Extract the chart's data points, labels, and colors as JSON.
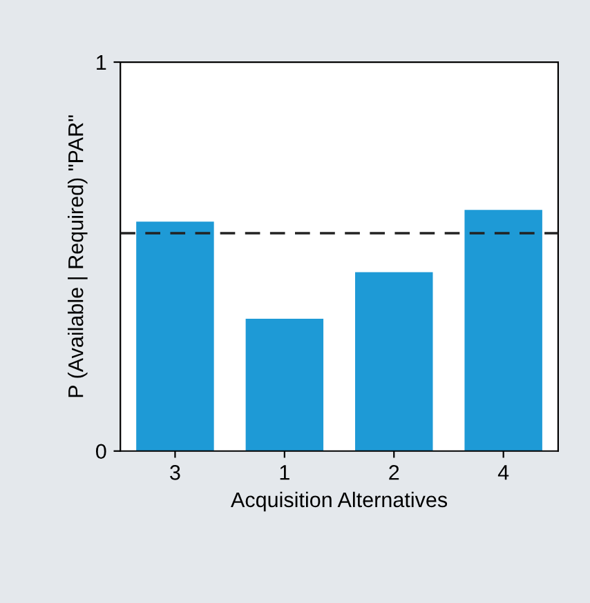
{
  "chart_data": {
    "type": "bar",
    "xlabel": "Acquisition Alternatives",
    "ylabel": "P (Available | Required) \"PAR\"",
    "categories": [
      "3",
      "1",
      "2",
      "4"
    ],
    "values": [
      0.59,
      0.34,
      0.46,
      0.62
    ],
    "color": "#1e9ad6",
    "ylim": [
      0,
      1
    ],
    "yticks": [
      0,
      1
    ],
    "grid": false,
    "legend": false,
    "ref_lines": [
      {
        "axis": "y",
        "value": 0.56,
        "label": null,
        "color": "#222222",
        "line_style": "dashed"
      }
    ]
  }
}
